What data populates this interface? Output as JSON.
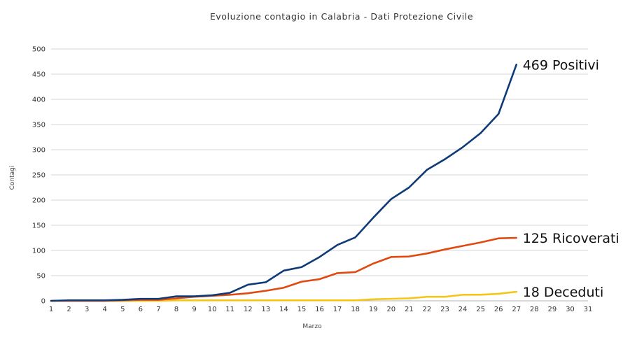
{
  "chart_data": {
    "type": "line",
    "title": "Evoluzione contagio in Calabria - Dati Protezione Civile",
    "xlabel": "Marzo",
    "ylabel": "Contagi",
    "categories": [
      1,
      2,
      3,
      4,
      5,
      6,
      7,
      8,
      9,
      10,
      11,
      12,
      13,
      14,
      15,
      16,
      17,
      18,
      19,
      20,
      21,
      22,
      23,
      24,
      25,
      26,
      27,
      28,
      29,
      30,
      31
    ],
    "ylim": [
      0,
      500
    ],
    "yticks": [
      0,
      50,
      100,
      150,
      200,
      250,
      300,
      350,
      400,
      450,
      500
    ],
    "grid": true,
    "series": [
      {
        "name": "Positivi",
        "color": "#0f3a78",
        "annotation": "469 Positivi",
        "x": [
          1,
          2,
          3,
          4,
          5,
          6,
          7,
          8,
          9,
          10,
          11,
          12,
          13,
          14,
          15,
          16,
          17,
          18,
          19,
          20,
          21,
          22,
          23,
          24,
          25,
          26,
          27
        ],
        "values": [
          0,
          1,
          1,
          1,
          2,
          4,
          4,
          9,
          9,
          11,
          16,
          32,
          37,
          60,
          67,
          87,
          111,
          126,
          165,
          202,
          225,
          260,
          281,
          305,
          333,
          371,
          469
        ]
      },
      {
        "name": "Ricoverati",
        "color": "#e04a10",
        "annotation": "125 Ricoverati",
        "x": [
          1,
          2,
          3,
          4,
          5,
          6,
          7,
          8,
          9,
          10,
          11,
          12,
          13,
          14,
          15,
          16,
          17,
          18,
          19,
          20,
          21,
          22,
          23,
          24,
          25,
          26,
          27
        ],
        "values": [
          0,
          0,
          0,
          0,
          1,
          2,
          2,
          5,
          8,
          10,
          12,
          15,
          20,
          26,
          38,
          43,
          55,
          57,
          74,
          87,
          88,
          94,
          102,
          109,
          116,
          124,
          125
        ]
      },
      {
        "name": "Deceduti",
        "color": "#f5c518",
        "annotation": "18 Deceduti",
        "x": [
          1,
          2,
          3,
          4,
          5,
          6,
          7,
          8,
          9,
          10,
          11,
          12,
          13,
          14,
          15,
          16,
          17,
          18,
          19,
          20,
          21,
          22,
          23,
          24,
          25,
          26,
          27
        ],
        "values": [
          0,
          0,
          0,
          0,
          0,
          0,
          0,
          1,
          1,
          1,
          1,
          1,
          1,
          1,
          1,
          1,
          1,
          1,
          3,
          4,
          5,
          8,
          8,
          12,
          12,
          14,
          18
        ]
      }
    ]
  }
}
